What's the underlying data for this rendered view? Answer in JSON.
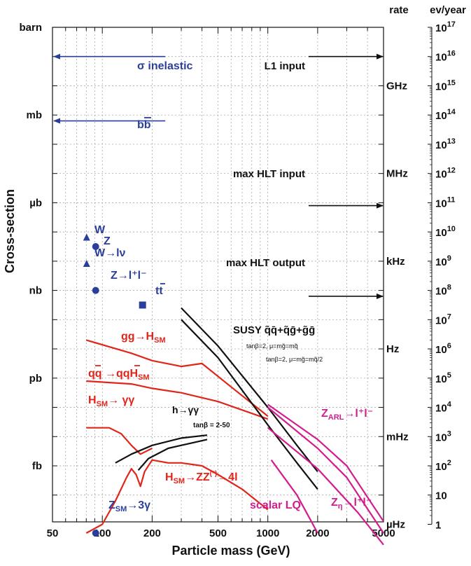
{
  "chart_data": {
    "type": "line",
    "xlabel": "Particle mass (GeV)",
    "ylabel": "Cross-section",
    "right_label_1": "rate",
    "right_label_2": "ev/year",
    "xscale": "log",
    "xlim": [
      50,
      5000
    ],
    "ylim_decades": [
      -16,
      0
    ],
    "xticks": [
      {
        "value": 50,
        "label": "50"
      },
      {
        "value": 100,
        "label": "100"
      },
      {
        "value": 200,
        "label": "200"
      },
      {
        "value": 500,
        "label": "500"
      },
      {
        "value": 1000,
        "label": "1000"
      },
      {
        "value": 2000,
        "label": "2000"
      },
      {
        "value": 5000,
        "label": "5000"
      }
    ],
    "left_ticks": [
      {
        "decade": 0,
        "label": "barn"
      },
      {
        "decade": -3,
        "label": "mb"
      },
      {
        "decade": -6,
        "label": "µb"
      },
      {
        "decade": -9,
        "label": "nb"
      },
      {
        "decade": -12,
        "label": "pb"
      },
      {
        "decade": -15,
        "label": "fb"
      }
    ],
    "rate_ticks": [
      {
        "decade": -2,
        "label": "GHz"
      },
      {
        "decade": -5,
        "label": "MHz"
      },
      {
        "decade": -8,
        "label": "kHz"
      },
      {
        "decade": -11,
        "label": "Hz"
      },
      {
        "decade": -14,
        "label": "mHz"
      },
      {
        "decade": -17,
        "label": "µHz"
      }
    ],
    "evyear_ticks": [
      {
        "decade": 0,
        "exp": "17"
      },
      {
        "decade": -1,
        "exp": "16"
      },
      {
        "decade": -2,
        "exp": "15"
      },
      {
        "decade": -3,
        "exp": "14"
      },
      {
        "decade": -4,
        "exp": "13"
      },
      {
        "decade": -5,
        "exp": "12"
      },
      {
        "decade": -6,
        "exp": "11"
      },
      {
        "decade": -7,
        "exp": "10"
      },
      {
        "decade": -8,
        "exp": "9"
      },
      {
        "decade": -9,
        "exp": "8"
      },
      {
        "decade": -10,
        "exp": "7"
      },
      {
        "decade": -11,
        "exp": "6"
      },
      {
        "decade": -12,
        "exp": "5"
      },
      {
        "decade": -13,
        "exp": "4"
      },
      {
        "decade": -14,
        "exp": "3"
      },
      {
        "decade": -15,
        "exp": "2"
      },
      {
        "decade": -16,
        "label": "10"
      },
      {
        "decade": -17,
        "label": "1"
      }
    ],
    "left_arrows": [
      {
        "name": "σ inelastic",
        "decade": -1.0,
        "to_mass": 50,
        "from_mass": 100,
        "color": "#2a3f9c"
      },
      {
        "name": "bb̄",
        "decade": -3.2,
        "to_mass": 50,
        "from_mass": 100,
        "color": "#2a3f9c"
      }
    ],
    "right_arrows": [
      {
        "name": "L1 input",
        "decade": -1.0,
        "from_mass": 1050,
        "color": "#111111"
      },
      {
        "name": "max HLT input",
        "decade": -6.1,
        "from_mass": 1050,
        "color": "#111111"
      },
      {
        "name": "max HLT output",
        "decade": -9.2,
        "from_mass": 1050,
        "color": "#111111"
      }
    ],
    "sm_points": [
      {
        "name": "W",
        "mass": 80.4,
        "decade": -7.2,
        "marker": "triangle",
        "label": "W"
      },
      {
        "name": "Z",
        "mass": 91.2,
        "decade": -7.5,
        "marker": "circle",
        "label": "Z"
      },
      {
        "name": "W→lν",
        "mass": 80.4,
        "decade": -8.1,
        "marker": "triangle",
        "label": "W→lν"
      },
      {
        "name": "Z→l+l-",
        "mass": 91.2,
        "decade": -9.0,
        "marker": "circle",
        "label": "Z→l⁺l⁻"
      },
      {
        "name": "tt",
        "mass": 175,
        "decade": -9.5,
        "marker": "square",
        "label": "tt̄"
      },
      {
        "name": "Z_SM→3γ",
        "mass": 91.2,
        "decade": -17.3,
        "marker": "circle",
        "label": "Z_SM→3γ"
      }
    ],
    "series": [
      {
        "name": "gg→H_SM",
        "color": "#e0261b",
        "x": [
          80,
          150,
          200,
          300,
          400,
          600,
          1000
        ],
        "y": [
          -10.7,
          -11.15,
          -11.4,
          -11.6,
          -11.5,
          -12.3,
          -13.3
        ]
      },
      {
        "name": "qq̄→qq̄H_SM",
        "color": "#e0261b",
        "x": [
          80,
          150,
          200,
          300,
          500,
          1000
        ],
        "y": [
          -12.1,
          -12.2,
          -12.35,
          -12.5,
          -12.8,
          -13.4
        ]
      },
      {
        "name": "H_SM→γγ",
        "color": "#e0261b",
        "x": [
          80,
          110,
          130,
          150,
          170,
          200
        ],
        "y": [
          -13.7,
          -13.7,
          -13.9,
          -14.3,
          -14.6,
          -14.4
        ]
      },
      {
        "name": "H_SM→ZZ(*)→4l",
        "color": "#e0261b",
        "x": [
          80,
          100,
          120,
          140,
          150,
          160,
          170,
          180,
          200,
          250,
          300,
          400,
          500,
          700,
          1000
        ],
        "y": [
          -17.3,
          -17.0,
          -16.2,
          -15.4,
          -15.1,
          -15.3,
          -15.7,
          -15.2,
          -14.8,
          -14.9,
          -14.9,
          -15.0,
          -15.3,
          -15.8,
          -16.5
        ]
      },
      {
        "name": "h→γγ",
        "color": "#111111",
        "x": [
          120,
          150,
          200,
          300,
          430
        ],
        "y": [
          -14.9,
          -14.6,
          -14.3,
          -14.05,
          -13.95
        ]
      },
      {
        "name": "h→γγ (tanβ=2-50 lower)",
        "color": "#111111",
        "x": [
          165,
          190,
          250,
          430
        ],
        "y": [
          -15.15,
          -14.75,
          -14.4,
          -14.1
        ]
      },
      {
        "name": "SUSY q̃q̄+q̃ḡ+g̃ḡ (tanβ=2, μ=mg̃=mq̃)",
        "color": "#111111",
        "x": [
          300,
          500,
          1000,
          1500,
          2000
        ],
        "y": [
          -9.6,
          -10.9,
          -13.0,
          -14.3,
          -15.2
        ]
      },
      {
        "name": "SUSY q̃q̄+q̃ḡ+g̃ḡ (tanβ=2, μ=mg̃=mq̃/2)",
        "color": "#111111",
        "x": [
          300,
          500,
          1000,
          1500,
          2000
        ],
        "y": [
          -10.0,
          -11.3,
          -13.6,
          -14.9,
          -15.8
        ]
      },
      {
        "name": "Z_ARL→l+l- (upper)",
        "color": "#d21d8e",
        "x": [
          1000,
          2000,
          3000,
          5000
        ],
        "y": [
          -12.9,
          -14.1,
          -15.0,
          -16.9
        ]
      },
      {
        "name": "Z_ARL→l+l- (lower)",
        "color": "#d21d8e",
        "x": [
          1000,
          2000,
          3000,
          5000
        ],
        "y": [
          -13.0,
          -14.4,
          -15.4,
          -17.3
        ]
      },
      {
        "name": "Z_η→l+l-",
        "color": "#d21d8e",
        "x": [
          1000,
          2000,
          3500,
          5000
        ],
        "y": [
          -13.7,
          -15.1,
          -16.6,
          -17.7
        ]
      },
      {
        "name": "scalar LQ",
        "color": "#d21d8e",
        "x": [
          1050,
          1500,
          2000
        ],
        "y": [
          -14.8,
          -16.0,
          -17.3
        ]
      }
    ],
    "annotations": {
      "sigma_inelastic": "σ inelastic",
      "bb": "bb",
      "l1_input": "L1 input",
      "max_hlt_input": "max HLT input",
      "max_hlt_output": "max HLT output",
      "gg_h": "gg→H",
      "gg_h_sub": "SM",
      "qq_h": "qq →qqH",
      "qq_h_sub": "SM",
      "h_gg": "H",
      "h_gg_sub": "SM",
      "h_gg_rest": "→ γγ",
      "h_gg_black": "h→γγ",
      "tanb_range": "tanβ = 2-50",
      "susy": "SUSY q̃q̄+q̃ḡ+g̃ḡ",
      "susy_note1": "tanβ=2, μ=mg̃=mq̃",
      "susy_note2": "tanβ=2, μ=mg̃=mq̃/2",
      "zarl": "Z",
      "zarl_sub": "ARL",
      "zarl_rest": "→l⁺l⁻",
      "zeta": "Z",
      "zeta_sub": "η",
      "zeta_rest": "→l⁺l⁻",
      "scalar_lq": "scalar LQ",
      "h_zz": "H",
      "h_zz_sub": "SM",
      "h_zz_rest": "→ZZ",
      "h_zz_sup": "(*)",
      "h_zz_end": "→4l",
      "z3g": "Z",
      "z3g_sub": "SM",
      "z3g_rest": "→3γ",
      "w": "W",
      "z": "Z",
      "w_lnu": "W→lν",
      "z_ll": "Z→l⁺l⁻",
      "tt": "tt"
    },
    "grid": true,
    "legend": "none"
  },
  "colors": {
    "blue": "#2a3f9c",
    "red": "#e0261b",
    "magenta": "#d21d8e",
    "black": "#111111",
    "grid": "#9a9a9a"
  }
}
